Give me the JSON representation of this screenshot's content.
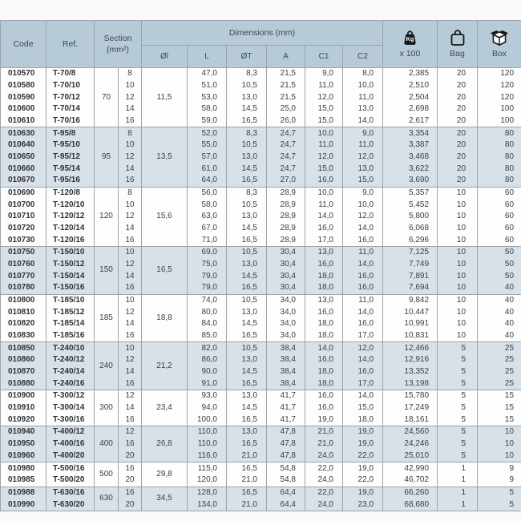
{
  "table": {
    "headers": {
      "code": "Code",
      "ref": "Ref.",
      "section_line1": "Section",
      "section_line2": "(mm²)",
      "dimensions": "Dimensions (mm)",
      "dim_cols": [
        "Øl",
        "L",
        "ØT",
        "A",
        "C1",
        "C2"
      ],
      "kg_label": "Kg",
      "kg_sub": "x 100",
      "bag": "Bag",
      "box": "Box"
    },
    "colors": {
      "header_bg": "#b6cad7",
      "stripe_bg": "#d8e0e8",
      "row_bg": "#fdfdfd",
      "border": "#9ba4ab",
      "text": "#3b4046"
    },
    "groups": [
      {
        "section": "70",
        "oi": "11,5",
        "highlight": false,
        "rows": [
          {
            "code": "010570",
            "ref": "T-70/8",
            "size": "8",
            "l": "47,0",
            "ot": "8,3",
            "a": "21,5",
            "c1": "9,0",
            "c2": "8,0",
            "kg": "2,385",
            "bag": "20",
            "box": "120"
          },
          {
            "code": "010580",
            "ref": "T-70/10",
            "size": "10",
            "l": "51,0",
            "ot": "10,5",
            "a": "21,5",
            "c1": "11,0",
            "c2": "10,0",
            "kg": "2,510",
            "bag": "20",
            "box": "120"
          },
          {
            "code": "010590",
            "ref": "T-70/12",
            "size": "12",
            "l": "53,0",
            "ot": "13,0",
            "a": "21,5",
            "c1": "12,0",
            "c2": "11,0",
            "kg": "2,504",
            "bag": "20",
            "box": "120"
          },
          {
            "code": "010600",
            "ref": "T-70/14",
            "size": "14",
            "l": "58,0",
            "ot": "14,5",
            "a": "25,0",
            "c1": "15,0",
            "c2": "13,0",
            "kg": "2,698",
            "bag": "20",
            "box": "100"
          },
          {
            "code": "010610",
            "ref": "T-70/16",
            "size": "16",
            "l": "59,0",
            "ot": "16,5",
            "a": "26,0",
            "c1": "15,0",
            "c2": "14,0",
            "kg": "2,617",
            "bag": "20",
            "box": "100"
          }
        ]
      },
      {
        "section": "95",
        "oi": "13,5",
        "highlight": true,
        "rows": [
          {
            "code": "010630",
            "ref": "T-95/8",
            "size": "8",
            "l": "52,0",
            "ot": "8,3",
            "a": "24,7",
            "c1": "10,0",
            "c2": "9,0",
            "kg": "3,354",
            "bag": "20",
            "box": "80"
          },
          {
            "code": "010640",
            "ref": "T-95/10",
            "size": "10",
            "l": "55,0",
            "ot": "10,5",
            "a": "24,7",
            "c1": "11,0",
            "c2": "11,0",
            "kg": "3,387",
            "bag": "20",
            "box": "80"
          },
          {
            "code": "010650",
            "ref": "T-95/12",
            "size": "12",
            "l": "57,0",
            "ot": "13,0",
            "a": "24,7",
            "c1": "12,0",
            "c2": "12,0",
            "kg": "3,468",
            "bag": "20",
            "box": "80"
          },
          {
            "code": "010660",
            "ref": "T-95/14",
            "size": "14",
            "l": "61,0",
            "ot": "14,5",
            "a": "24,7",
            "c1": "15,0",
            "c2": "13,0",
            "kg": "3,622",
            "bag": "20",
            "box": "80"
          },
          {
            "code": "010670",
            "ref": "T-95/16",
            "size": "16",
            "l": "64,0",
            "ot": "16,5",
            "a": "27,0",
            "c1": "16,0",
            "c2": "15,0",
            "kg": "3,690",
            "bag": "20",
            "box": "80"
          }
        ]
      },
      {
        "section": "120",
        "oi": "15,6",
        "highlight": false,
        "rows": [
          {
            "code": "010690",
            "ref": "T-120/8",
            "size": "8",
            "l": "56,0",
            "ot": "8,3",
            "a": "28,9",
            "c1": "10,0",
            "c2": "9,0",
            "kg": "5,357",
            "bag": "10",
            "box": "60"
          },
          {
            "code": "010700",
            "ref": "T-120/10",
            "size": "10",
            "l": "58,0",
            "ot": "10,5",
            "a": "28,9",
            "c1": "11,0",
            "c2": "10,0",
            "kg": "5,452",
            "bag": "10",
            "box": "60"
          },
          {
            "code": "010710",
            "ref": "T-120/12",
            "size": "12",
            "l": "63,0",
            "ot": "13,0",
            "a": "28,9",
            "c1": "14,0",
            "c2": "12,0",
            "kg": "5,800",
            "bag": "10",
            "box": "60"
          },
          {
            "code": "010720",
            "ref": "T-120/14",
            "size": "14",
            "l": "67,0",
            "ot": "14,5",
            "a": "28,9",
            "c1": "16,0",
            "c2": "14,0",
            "kg": "6,068",
            "bag": "10",
            "box": "60"
          },
          {
            "code": "010730",
            "ref": "T-120/16",
            "size": "16",
            "l": "71,0",
            "ot": "16,5",
            "a": "28,9",
            "c1": "17,0",
            "c2": "16,0",
            "kg": "6,296",
            "bag": "10",
            "box": "60"
          }
        ]
      },
      {
        "section": "150",
        "oi": "16,5",
        "highlight": true,
        "rows": [
          {
            "code": "010750",
            "ref": "T-150/10",
            "size": "10",
            "l": "69,0",
            "ot": "10,5",
            "a": "30,4",
            "c1": "13,0",
            "c2": "11,0",
            "kg": "7,125",
            "bag": "10",
            "box": "50"
          },
          {
            "code": "010760",
            "ref": "T-150/12",
            "size": "12",
            "l": "75,0",
            "ot": "13,0",
            "a": "30,4",
            "c1": "16,0",
            "c2": "14,0",
            "kg": "7,749",
            "bag": "10",
            "box": "50"
          },
          {
            "code": "010770",
            "ref": "T-150/14",
            "size": "14",
            "l": "79,0",
            "ot": "14,5",
            "a": "30,4",
            "c1": "18,0",
            "c2": "16,0",
            "kg": "7,891",
            "bag": "10",
            "box": "50"
          },
          {
            "code": "010780",
            "ref": "T-150/16",
            "size": "16",
            "l": "79,0",
            "ot": "16,5",
            "a": "30,4",
            "c1": "18,0",
            "c2": "16,0",
            "kg": "7,694",
            "bag": "10",
            "box": "40"
          }
        ]
      },
      {
        "section": "185",
        "oi": "18,8",
        "highlight": false,
        "rows": [
          {
            "code": "010800",
            "ref": "T-185/10",
            "size": "10",
            "l": "74,0",
            "ot": "10,5",
            "a": "34,0",
            "c1": "13,0",
            "c2": "11,0",
            "kg": "9,842",
            "bag": "10",
            "box": "40"
          },
          {
            "code": "010810",
            "ref": "T-185/12",
            "size": "12",
            "l": "80,0",
            "ot": "13,0",
            "a": "34,0",
            "c1": "16,0",
            "c2": "14,0",
            "kg": "10,447",
            "bag": "10",
            "box": "40"
          },
          {
            "code": "010820",
            "ref": "T-185/14",
            "size": "14",
            "l": "84,0",
            "ot": "14,5",
            "a": "34,0",
            "c1": "18,0",
            "c2": "16,0",
            "kg": "10,991",
            "bag": "10",
            "box": "40"
          },
          {
            "code": "010830",
            "ref": "T-185/16",
            "size": "16",
            "l": "85,0",
            "ot": "16,5",
            "a": "34,0",
            "c1": "18,0",
            "c2": "17,0",
            "kg": "10,831",
            "bag": "10",
            "box": "40"
          }
        ]
      },
      {
        "section": "240",
        "oi": "21,2",
        "highlight": true,
        "rows": [
          {
            "code": "010850",
            "ref": "T-240/10",
            "size": "10",
            "l": "82,0",
            "ot": "10,5",
            "a": "38,4",
            "c1": "14,0",
            "c2": "12,0",
            "kg": "12,466",
            "bag": "5",
            "box": "25"
          },
          {
            "code": "010860",
            "ref": "T-240/12",
            "size": "12",
            "l": "86,0",
            "ot": "13,0",
            "a": "38,4",
            "c1": "16,0",
            "c2": "14,0",
            "kg": "12,916",
            "bag": "5",
            "box": "25"
          },
          {
            "code": "010870",
            "ref": "T-240/14",
            "size": "14",
            "l": "90,0",
            "ot": "14,5",
            "a": "38,4",
            "c1": "18,0",
            "c2": "16,0",
            "kg": "13,352",
            "bag": "5",
            "box": "25"
          },
          {
            "code": "010880",
            "ref": "T-240/16",
            "size": "16",
            "l": "91,0",
            "ot": "16,5",
            "a": "38,4",
            "c1": "18,0",
            "c2": "17,0",
            "kg": "13,198",
            "bag": "5",
            "box": "25"
          }
        ]
      },
      {
        "section": "300",
        "oi": "23,4",
        "highlight": false,
        "rows": [
          {
            "code": "010900",
            "ref": "T-300/12",
            "size": "12",
            "l": "93,0",
            "ot": "13,0",
            "a": "41,7",
            "c1": "16,0",
            "c2": "14,0",
            "kg": "15,780",
            "bag": "5",
            "box": "15"
          },
          {
            "code": "010910",
            "ref": "T-300/14",
            "size": "14",
            "l": "94,0",
            "ot": "14,5",
            "a": "41,7",
            "c1": "16,0",
            "c2": "15,0",
            "kg": "17,249",
            "bag": "5",
            "box": "15"
          },
          {
            "code": "010920",
            "ref": "T-300/16",
            "size": "16",
            "l": "100,0",
            "ot": "16,5",
            "a": "41,7",
            "c1": "19,0",
            "c2": "18,0",
            "kg": "18,161",
            "bag": "5",
            "box": "15"
          }
        ]
      },
      {
        "section": "400",
        "oi": "26,8",
        "highlight": true,
        "rows": [
          {
            "code": "010940",
            "ref": "T-400/12",
            "size": "12",
            "l": "110,0",
            "ot": "13,0",
            "a": "47,8",
            "c1": "21,0",
            "c2": "19,0",
            "kg": "24,560",
            "bag": "5",
            "box": "10"
          },
          {
            "code": "010950",
            "ref": "T-400/16",
            "size": "16",
            "l": "110,0",
            "ot": "16,5",
            "a": "47,8",
            "c1": "21,0",
            "c2": "19,0",
            "kg": "24,246",
            "bag": "5",
            "box": "10"
          },
          {
            "code": "010960",
            "ref": "T-400/20",
            "size": "20",
            "l": "116,0",
            "ot": "21,0",
            "a": "47,8",
            "c1": "24,0",
            "c2": "22,0",
            "kg": "25,010",
            "bag": "5",
            "box": "10"
          }
        ]
      },
      {
        "section": "500",
        "oi": "29,8",
        "highlight": false,
        "rows": [
          {
            "code": "010980",
            "ref": "T-500/16",
            "size": "16",
            "l": "115,0",
            "ot": "16,5",
            "a": "54,8",
            "c1": "22,0",
            "c2": "19,0",
            "kg": "42,990",
            "bag": "1",
            "box": "9"
          },
          {
            "code": "010985",
            "ref": "T-500/20",
            "size": "20",
            "l": "120,0",
            "ot": "21,0",
            "a": "54,8",
            "c1": "24,0",
            "c2": "22,0",
            "kg": "46,702",
            "bag": "1",
            "box": "9"
          }
        ]
      },
      {
        "section": "630",
        "oi": "34,5",
        "highlight": true,
        "rows": [
          {
            "code": "010988",
            "ref": "T-630/16",
            "size": "16",
            "l": "128,0",
            "ot": "16,5",
            "a": "64,4",
            "c1": "22,0",
            "c2": "19,0",
            "kg": "66,260",
            "bag": "1",
            "box": "5"
          },
          {
            "code": "010990",
            "ref": "T-630/20",
            "size": "20",
            "l": "134,0",
            "ot": "21,0",
            "a": "64,4",
            "c1": "24,0",
            "c2": "23,0",
            "kg": "68,680",
            "bag": "1",
            "box": "5"
          }
        ]
      }
    ]
  }
}
